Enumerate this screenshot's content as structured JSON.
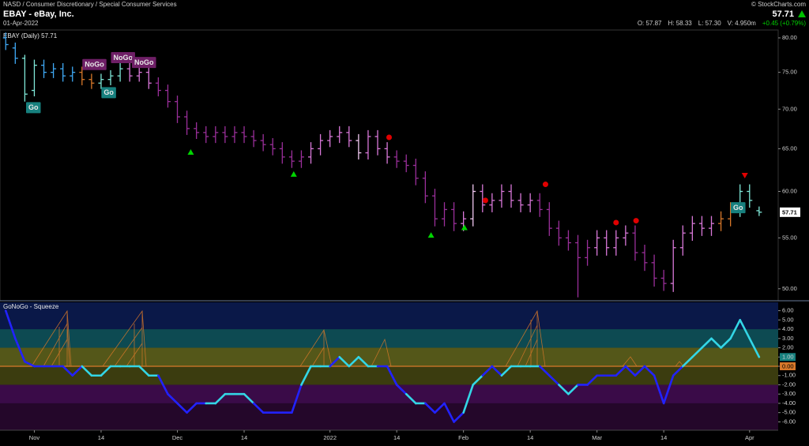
{
  "header": {
    "breadcrumb": "NASD / Consumer Discretionary / Special Consumer Services",
    "symbol": "EBAY - eBay, Inc.",
    "date": "01-Apr-2022",
    "copyright": "© StockCharts.com",
    "last": "57.71",
    "change": "+0.45 (+0.79%)",
    "ohlcv": [
      "O: 57.87",
      "H: 58.33",
      "L: 57.30",
      "V: 4.950m"
    ]
  },
  "chart_data": [
    {
      "type": "ohlc",
      "label": "EBAY (Daily) 57.71",
      "log": true,
      "ylim": [
        48.96,
        80.95
      ],
      "xlim": [
        -0.6,
        81
      ],
      "last_label": "57.71",
      "yticks": [
        {
          "value": 50,
          "label": "50.00"
        },
        {
          "value": 55,
          "label": "55.00"
        },
        {
          "value": 60,
          "label": "60.00"
        },
        {
          "value": 65,
          "label": "65.00"
        },
        {
          "value": 70,
          "label": "70.00"
        },
        {
          "value": 75,
          "label": "75.00"
        },
        {
          "value": 80,
          "label": "80.00"
        }
      ],
      "open": [
        80,
        78.5,
        77,
        72.5,
        76,
        75,
        75.5,
        74.5,
        75,
        74,
        73.5,
        74,
        74.5,
        75.5,
        74.5,
        75,
        73.5,
        72.5,
        71,
        69,
        67.5,
        67,
        66.5,
        67,
        66.5,
        67,
        66.5,
        66,
        65.5,
        65,
        64,
        63.5,
        64,
        65,
        66,
        66.5,
        67,
        66,
        64.5,
        66.5,
        65,
        64,
        63.5,
        63,
        61.5,
        59.5,
        57,
        58,
        56.5,
        57,
        60,
        58.5,
        59,
        60,
        59,
        58.5,
        59,
        58,
        56,
        55,
        54.5,
        53,
        54,
        55,
        54,
        55,
        55.5,
        53.5,
        52.5,
        51,
        50.5,
        54,
        55.5,
        56.5,
        56,
        56.5,
        57,
        58,
        60,
        57.87
      ],
      "high": [
        80.8,
        79.3,
        77.5,
        76.8,
        76.8,
        76.3,
        76.3,
        75.8,
        75.8,
        74.8,
        74.8,
        75.3,
        76.3,
        76.3,
        75.8,
        75.8,
        74.3,
        73.3,
        71.8,
        69.8,
        68.3,
        67.8,
        67.8,
        67.8,
        67.8,
        67.8,
        67.3,
        66.8,
        66.3,
        65.8,
        64.8,
        64.8,
        65.8,
        66.8,
        67.3,
        67.8,
        67.8,
        66.8,
        67.3,
        67.3,
        65.8,
        64.8,
        64.3,
        63.8,
        62.3,
        60.3,
        58.8,
        58.8,
        57.8,
        60.8,
        60.8,
        59.8,
        60.8,
        60.8,
        59.8,
        59.8,
        59.8,
        58.8,
        56.8,
        55.8,
        55.3,
        54.8,
        55.8,
        55.8,
        55.8,
        56.3,
        56.3,
        54.3,
        53.3,
        51.8,
        54.8,
        56.3,
        57.3,
        57.3,
        57.3,
        57.8,
        58.8,
        60.8,
        60.8,
        58.33
      ],
      "low": [
        78.2,
        76.2,
        71,
        71.7,
        74.2,
        74.2,
        73.7,
        73.7,
        73.2,
        72.7,
        72.7,
        73.2,
        73.7,
        73.7,
        73.7,
        72.7,
        71.7,
        70.2,
        68.2,
        66.7,
        66.2,
        65.7,
        65.7,
        65.7,
        65.7,
        65.7,
        65.2,
        64.7,
        64.2,
        63.2,
        62.7,
        62.7,
        63.2,
        64.2,
        65.2,
        65.7,
        65.2,
        63.7,
        63.7,
        64.2,
        63.2,
        62.7,
        62.2,
        60.7,
        58.7,
        56.2,
        56.2,
        55.7,
        55.7,
        56.2,
        57.7,
        57.7,
        58.2,
        58.2,
        57.7,
        57.7,
        57.2,
        55.2,
        54.2,
        53.7,
        49.2,
        52.2,
        53.2,
        53.2,
        53.2,
        54.2,
        52.7,
        51.7,
        50.2,
        49.8,
        49.7,
        53.2,
        54.7,
        55.2,
        55.2,
        55.7,
        56.2,
        57.2,
        58.2,
        57.3
      ],
      "close": [
        79,
        77,
        72,
        76,
        75,
        75.5,
        74.5,
        75,
        74,
        73.5,
        74,
        74.5,
        75.5,
        74.5,
        75,
        73.5,
        72.5,
        71,
        69,
        67.5,
        67,
        66.5,
        67,
        66.5,
        67,
        66.5,
        66,
        65.5,
        65,
        64,
        63.5,
        64,
        65,
        66,
        66.5,
        67,
        66,
        64.5,
        66.5,
        65,
        64,
        63.5,
        63,
        61.5,
        59.5,
        57,
        58,
        56.5,
        57,
        60,
        58.5,
        59,
        60,
        59,
        58.5,
        59,
        58,
        56,
        55,
        54.5,
        53,
        54,
        55,
        54,
        55,
        55.5,
        53.5,
        52.5,
        51,
        50.5,
        54,
        55.5,
        56.5,
        56,
        56.5,
        57,
        58,
        60,
        59,
        57.71
      ],
      "colors": [
        "#3fa9f5",
        "#3fa9f5",
        "#7fe8d8",
        "#7fe8d8",
        "#3fa9f5",
        "#3fa9f5",
        "#3fa9f5",
        "#3fa9f5",
        "#d8782a",
        "#d8782a",
        "#7fe8d8",
        "#7fe8d8",
        "#7fe8d8",
        "#d978d9",
        "#d978d9",
        "#d978d9",
        "#9a2f9a",
        "#9a2f9a",
        "#9a2f9a",
        "#9a2f9a",
        "#9a2f9a",
        "#9a2f9a",
        "#9a2f9a",
        "#9a2f9a",
        "#9a2f9a",
        "#9a2f9a",
        "#9a2f9a",
        "#9a2f9a",
        "#9a2f9a",
        "#9a2f9a",
        "#9a2f9a",
        "#9a2f9a",
        "#d978d9",
        "#d978d9",
        "#d978d9",
        "#d978d9",
        "#d978d9",
        "#f0c8f0",
        "#d978d9",
        "#d978d9",
        "#d978d9",
        "#9a2f9a",
        "#9a2f9a",
        "#9a2f9a",
        "#9a2f9a",
        "#9a2f9a",
        "#9a2f9a",
        "#9a2f9a",
        "#d978d9",
        "#f0c8f0",
        "#d978d9",
        "#d978d9",
        "#d978d9",
        "#d978d9",
        "#d978d9",
        "#d978d9",
        "#9a2f9a",
        "#9a2f9a",
        "#9a2f9a",
        "#9a2f9a",
        "#9a2f9a",
        "#9a2f9a",
        "#d978d9",
        "#d978d9",
        "#d978d9",
        "#d978d9",
        "#9a2f9a",
        "#9a2f9a",
        "#9a2f9a",
        "#9a2f9a",
        "#d978d9",
        "#d978d9",
        "#d978d9",
        "#d978d9",
        "#d978d9",
        "#d8782a",
        "#d8782a",
        "#7fe8d8",
        "#7fe8d8",
        "#7fe8d8"
      ],
      "labels": [
        {
          "text": "Go",
          "x": 2.9,
          "y": 70.2,
          "color": "#17807e"
        },
        {
          "text": "NoGo",
          "x": 9.3,
          "y": 76.1,
          "color": "#6e1f66"
        },
        {
          "text": "Go",
          "x": 10.8,
          "y": 72.2,
          "color": "#17807e"
        },
        {
          "text": "NoGo",
          "x": 12.3,
          "y": 77.1,
          "color": "#6e1f66"
        },
        {
          "text": "NoGo",
          "x": 14.5,
          "y": 76.4,
          "color": "#6e1f66"
        },
        {
          "text": "Go",
          "x": 76.8,
          "y": 58.2,
          "color": "#17807e"
        }
      ],
      "markers": [
        {
          "shape": "triangle-up",
          "color": "#00d400",
          "x": 19.4,
          "y": 64.6
        },
        {
          "shape": "triangle-up",
          "color": "#00d400",
          "x": 30.2,
          "y": 62.0
        },
        {
          "shape": "triangle-up",
          "color": "#00d400",
          "x": 44.6,
          "y": 55.3
        },
        {
          "shape": "triangle-up",
          "color": "#00d400",
          "x": 48.1,
          "y": 56.1
        },
        {
          "shape": "circle",
          "color": "#e00000",
          "x": 40.2,
          "y": 66.4
        },
        {
          "shape": "circle",
          "color": "#e00000",
          "x": 50.3,
          "y": 59.0
        },
        {
          "shape": "circle",
          "color": "#e00000",
          "x": 56.6,
          "y": 60.8
        },
        {
          "shape": "circle",
          "color": "#e00000",
          "x": 64.0,
          "y": 56.6
        },
        {
          "shape": "circle",
          "color": "#e00000",
          "x": 66.1,
          "y": 56.8
        },
        {
          "shape": "triangle-down",
          "color": "#e00000",
          "x": 77.5,
          "y": 61.8
        }
      ]
    },
    {
      "type": "line",
      "title": "GoNoGo - Squeeze",
      "ylim": [
        -6.9,
        6.9
      ],
      "xlim": [
        -0.6,
        81
      ],
      "last_label": "1.00",
      "last_color": "#17807e",
      "zero_line": {
        "value": 0,
        "label": "0.00",
        "color": "#d8782a"
      },
      "bands": [
        {
          "from": 4,
          "to": 6.9,
          "color": "#0a1848"
        },
        {
          "from": 2,
          "to": 4,
          "color": "#0d4a52"
        },
        {
          "from": 0,
          "to": 2,
          "color": "#545719"
        },
        {
          "from": -2,
          "to": 0,
          "color": "#3b3c0f"
        },
        {
          "from": -4,
          "to": -2,
          "color": "#3a0b48"
        },
        {
          "from": -6.9,
          "to": -4,
          "color": "#24072a"
        }
      ],
      "yticks": [
        {
          "value": 6,
          "label": "6.00"
        },
        {
          "value": 5,
          "label": "5.00"
        },
        {
          "value": 4,
          "label": "4.00"
        },
        {
          "value": 3,
          "label": "3.00"
        },
        {
          "value": 2,
          "label": "2.00"
        },
        {
          "value": 1,
          "label": "1.00"
        },
        {
          "value": 0,
          "label": "0.00"
        },
        {
          "value": -1,
          "label": "-1.00"
        },
        {
          "value": -2,
          "label": "-2.00"
        },
        {
          "value": -3,
          "label": "-3.00"
        },
        {
          "value": -4,
          "label": "-4.00"
        },
        {
          "value": -5,
          "label": "-5.00"
        },
        {
          "value": -6,
          "label": "-6.00"
        }
      ],
      "xticks": [
        {
          "value": 3,
          "label": "Nov"
        },
        {
          "value": 10,
          "label": "14"
        },
        {
          "value": 18,
          "label": "Dec"
        },
        {
          "value": 25,
          "label": "14"
        },
        {
          "value": 34,
          "label": "2022"
        },
        {
          "value": 41,
          "label": "14"
        },
        {
          "value": 48,
          "label": "Feb"
        },
        {
          "value": 55,
          "label": "14"
        },
        {
          "value": 62,
          "label": "Mar"
        },
        {
          "value": 69,
          "label": "14"
        },
        {
          "value": 78,
          "label": "Apr"
        }
      ],
      "values": [
        6,
        3,
        0.5,
        0,
        0,
        0,
        0,
        -1,
        0,
        -1,
        -1,
        0,
        0,
        0,
        0,
        -1,
        -1,
        -3,
        -4,
        -5,
        -4,
        -4,
        -4,
        -3,
        -3,
        -3,
        -4,
        -5,
        -5,
        -5,
        -5,
        -2,
        0,
        0,
        0,
        1,
        0,
        1,
        0,
        0,
        0,
        -2,
        -3,
        -4,
        -4,
        -5,
        -4,
        -6,
        -5,
        -2,
        -1,
        0,
        -1,
        0,
        0,
        0,
        0,
        -1,
        -2,
        -3,
        -2,
        -2,
        -1,
        -1,
        -1,
        0,
        -1,
        0,
        -1,
        -4,
        -1,
        0,
        1,
        2,
        3,
        2,
        3,
        5,
        3,
        1
      ],
      "colors": [
        "#2222ff",
        "#2222ff",
        "#2222ff",
        "#2222ff",
        "#2222ff",
        "#2222ff",
        "#2222ff",
        "#2222ff",
        "#2222ff",
        "#33d6e6",
        "#33d6e6",
        "#33d6e6",
        "#33d6e6",
        "#33d6e6",
        "#33d6e6",
        "#33d6e6",
        "#33d6e6",
        "#2222ff",
        "#2222ff",
        "#2222ff",
        "#2222ff",
        "#2222ff",
        "#33d6e6",
        "#33d6e6",
        "#33d6e6",
        "#33d6e6",
        "#33d6e6",
        "#2222ff",
        "#2222ff",
        "#2222ff",
        "#2222ff",
        "#2222ff",
        "#33d6e6",
        "#33d6e6",
        "#33d6e6",
        "#2222ff",
        "#33d6e6",
        "#33d6e6",
        "#33d6e6",
        "#33d6e6",
        "#2222ff",
        "#2222ff",
        "#2222ff",
        "#33d6e6",
        "#33d6e6",
        "#2222ff",
        "#2222ff",
        "#2222ff",
        "#2222ff",
        "#33d6e6",
        "#33d6e6",
        "#2222ff",
        "#2222ff",
        "#33d6e6",
        "#33d6e6",
        "#33d6e6",
        "#33d6e6",
        "#2222ff",
        "#2222ff",
        "#33d6e6",
        "#33d6e6",
        "#2222ff",
        "#2222ff",
        "#2222ff",
        "#2222ff",
        "#2222ff",
        "#2222ff",
        "#2222ff",
        "#2222ff",
        "#2222ff",
        "#2222ff",
        "#2222ff",
        "#33d6e6",
        "#33d6e6",
        "#33d6e6",
        "#33d6e6",
        "#33d6e6",
        "#33d6e6",
        "#33d6e6",
        "#33d6e6"
      ]
    }
  ]
}
